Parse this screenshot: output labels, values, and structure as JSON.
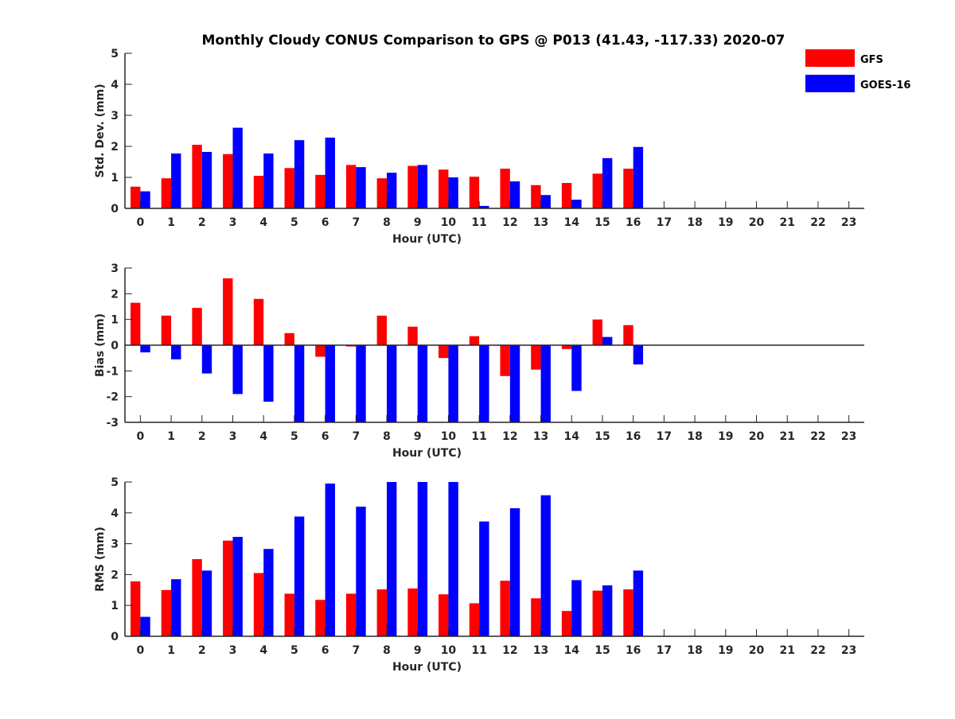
{
  "figure": {
    "title": "Monthly Cloudy CONUS Comparison to GPS @ P013 (41.43, -117.33) 2020-07"
  },
  "legend": [
    {
      "name": "GFS",
      "color": "#ff0000"
    },
    {
      "name": "GOES-16",
      "color": "#0000ff"
    }
  ],
  "chart_data": [
    {
      "type": "bar",
      "xlabel": "Hour (UTC)",
      "ylabel": "Std. Dev. (mm)",
      "ylim": [
        0,
        5
      ],
      "yticks": [
        0,
        1,
        2,
        3,
        4,
        5
      ],
      "categories": [
        "0",
        "1",
        "2",
        "3",
        "4",
        "5",
        "6",
        "7",
        "8",
        "9",
        "10",
        "11",
        "12",
        "13",
        "14",
        "15",
        "16",
        "17",
        "18",
        "19",
        "20",
        "21",
        "22",
        "23"
      ],
      "series": [
        {
          "name": "GFS",
          "color": "#ff0000",
          "values": [
            0.7,
            0.97,
            2.05,
            1.75,
            1.05,
            1.3,
            1.08,
            1.4,
            0.97,
            1.37,
            1.25,
            1.02,
            1.28,
            0.75,
            0.82,
            1.12,
            1.28,
            null,
            null,
            null,
            null,
            null,
            null,
            null
          ]
        },
        {
          "name": "GOES-16",
          "color": "#0000ff",
          "values": [
            0.55,
            1.77,
            1.82,
            2.6,
            1.77,
            2.2,
            2.28,
            1.33,
            1.15,
            1.4,
            1.0,
            0.08,
            0.87,
            0.43,
            0.28,
            1.62,
            1.98,
            null,
            null,
            null,
            null,
            null,
            null,
            null
          ]
        }
      ]
    },
    {
      "type": "bar",
      "xlabel": "Hour (UTC)",
      "ylabel": "Bias (mm)",
      "ylim": [
        -3,
        3
      ],
      "yticks": [
        -3,
        -2,
        -1,
        0,
        1,
        2,
        3
      ],
      "categories": [
        "0",
        "1",
        "2",
        "3",
        "4",
        "5",
        "6",
        "7",
        "8",
        "9",
        "10",
        "11",
        "12",
        "13",
        "14",
        "15",
        "16",
        "17",
        "18",
        "19",
        "20",
        "21",
        "22",
        "23"
      ],
      "series": [
        {
          "name": "GFS",
          "color": "#ff0000",
          "values": [
            1.65,
            1.15,
            1.45,
            2.6,
            1.8,
            0.47,
            -0.45,
            -0.05,
            1.15,
            0.72,
            -0.5,
            0.35,
            -1.2,
            -0.95,
            -0.15,
            1.0,
            0.78,
            null,
            null,
            null,
            null,
            null,
            null,
            null
          ]
        },
        {
          "name": "GOES-16",
          "color": "#0000ff",
          "values": [
            -0.28,
            -0.55,
            -1.1,
            -1.9,
            -2.2,
            -3.0,
            -3.0,
            -3.0,
            -3.0,
            -3.0,
            -3.0,
            -3.0,
            -3.0,
            -3.0,
            -1.78,
            0.32,
            -0.75,
            null,
            null,
            null,
            null,
            null,
            null,
            null
          ]
        }
      ]
    },
    {
      "type": "bar",
      "xlabel": "Hour (UTC)",
      "ylabel": "RMS (mm)",
      "ylim": [
        0,
        5
      ],
      "yticks": [
        0,
        1,
        2,
        3,
        4,
        5
      ],
      "categories": [
        "0",
        "1",
        "2",
        "3",
        "4",
        "5",
        "6",
        "7",
        "8",
        "9",
        "10",
        "11",
        "12",
        "13",
        "14",
        "15",
        "16",
        "17",
        "18",
        "19",
        "20",
        "21",
        "22",
        "23"
      ],
      "series": [
        {
          "name": "GFS",
          "color": "#ff0000",
          "values": [
            1.78,
            1.5,
            2.5,
            3.1,
            2.05,
            1.38,
            1.18,
            1.38,
            1.52,
            1.55,
            1.36,
            1.07,
            1.8,
            1.23,
            0.82,
            1.48,
            1.52,
            null,
            null,
            null,
            null,
            null,
            null,
            null
          ]
        },
        {
          "name": "GOES-16",
          "color": "#0000ff",
          "values": [
            0.63,
            1.85,
            2.13,
            3.22,
            2.83,
            3.88,
            4.95,
            4.2,
            5.0,
            5.0,
            5.0,
            3.72,
            4.15,
            4.57,
            1.82,
            1.65,
            2.13,
            null,
            null,
            null,
            null,
            null,
            null,
            null
          ]
        }
      ]
    }
  ]
}
